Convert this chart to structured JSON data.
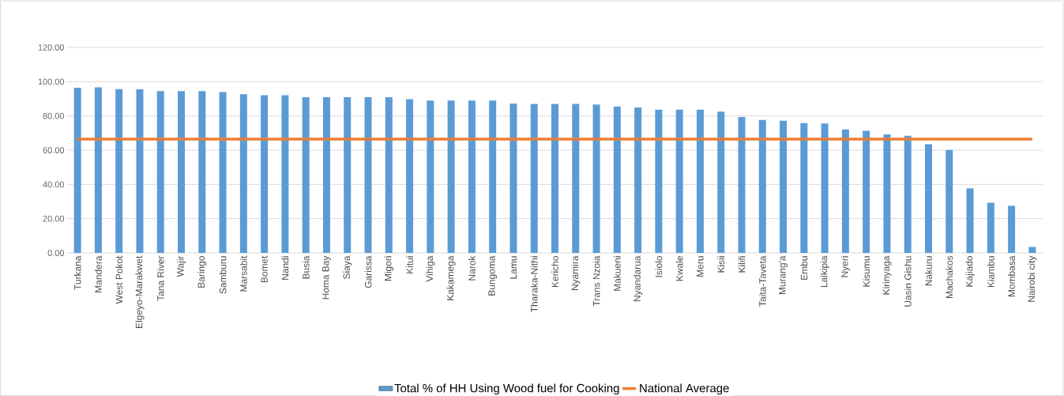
{
  "chart_data": {
    "type": "bar",
    "categories": [
      "Turkana",
      "Mandera",
      "West Pokot",
      "Elgeyo-Marakwet",
      "Tana River",
      "Wajir",
      "Baringo",
      "Samburu",
      "Marsabit",
      "Bomet",
      "Nandi",
      "Busia",
      "Homa Bay",
      "Siaya",
      "Garissa",
      "Migori",
      "Kitui",
      "Vihiga",
      "Kakamega",
      "Narok",
      "Bungoma",
      "Lamu",
      "Tharaka-Nithi",
      "Kericho",
      "Nyamira",
      "Trans Nzoia",
      "Makueni",
      "Nyandarua",
      "Isiolo",
      "Kwale",
      "Meru",
      "Kisii",
      "Kilifi",
      "Taita-Taveta",
      "Murang'a",
      "Embu",
      "Laikipia",
      "Nyeri",
      "Kisumu",
      "Kirinyaga",
      "Uasin Gishu",
      "Nakuru",
      "Machakos",
      "Kajiado",
      "Kiambu",
      "Mombasa",
      "Nairobi city"
    ],
    "series": [
      {
        "name": "Total % of HH Using Wood fuel for Cooking",
        "color": "#5b9bd5",
        "values": [
          96.5,
          96.7,
          95.7,
          95.5,
          94.5,
          94.5,
          94.5,
          93.9,
          92.7,
          92.1,
          92.1,
          90.9,
          90.9,
          90.9,
          90.9,
          90.9,
          89.8,
          89.0,
          89.0,
          89.0,
          89.0,
          87.2,
          87.0,
          87.0,
          87.0,
          86.6,
          85.5,
          84.9,
          83.7,
          83.7,
          83.7,
          82.5,
          79.4,
          77.6,
          77.2,
          75.8,
          75.6,
          72.1,
          71.3,
          69.2,
          68.4,
          63.5,
          60.1,
          37.7,
          29.3,
          27.5,
          3.5
        ]
      },
      {
        "name": "National Average",
        "type": "line",
        "color": "#ed7d31",
        "values": [
          66.5,
          66.5,
          66.5,
          66.5,
          66.5,
          66.5,
          66.5,
          66.5,
          66.5,
          66.5,
          66.5,
          66.5,
          66.5,
          66.5,
          66.5,
          66.5,
          66.5,
          66.5,
          66.5,
          66.5,
          66.5,
          66.5,
          66.5,
          66.5,
          66.5,
          66.5,
          66.5,
          66.5,
          66.5,
          66.5,
          66.5,
          66.5,
          66.5,
          66.5,
          66.5,
          66.5,
          66.5,
          66.5,
          66.5,
          66.5,
          66.5,
          66.5,
          66.5,
          66.5,
          66.5,
          66.5,
          66.5
        ]
      }
    ],
    "ylim": [
      0,
      120
    ],
    "yticks": [
      {
        "value": 0,
        "label": "0.00"
      },
      {
        "value": 20,
        "label": "20.00"
      },
      {
        "value": 40,
        "label": "40.00"
      },
      {
        "value": 60,
        "label": "60.00"
      },
      {
        "value": 80,
        "label": "80.00"
      },
      {
        "value": 100,
        "label": "100.00"
      },
      {
        "value": 120,
        "label": "120.00"
      }
    ],
    "grid": "y",
    "legend": "bottom",
    "marker": "none"
  }
}
